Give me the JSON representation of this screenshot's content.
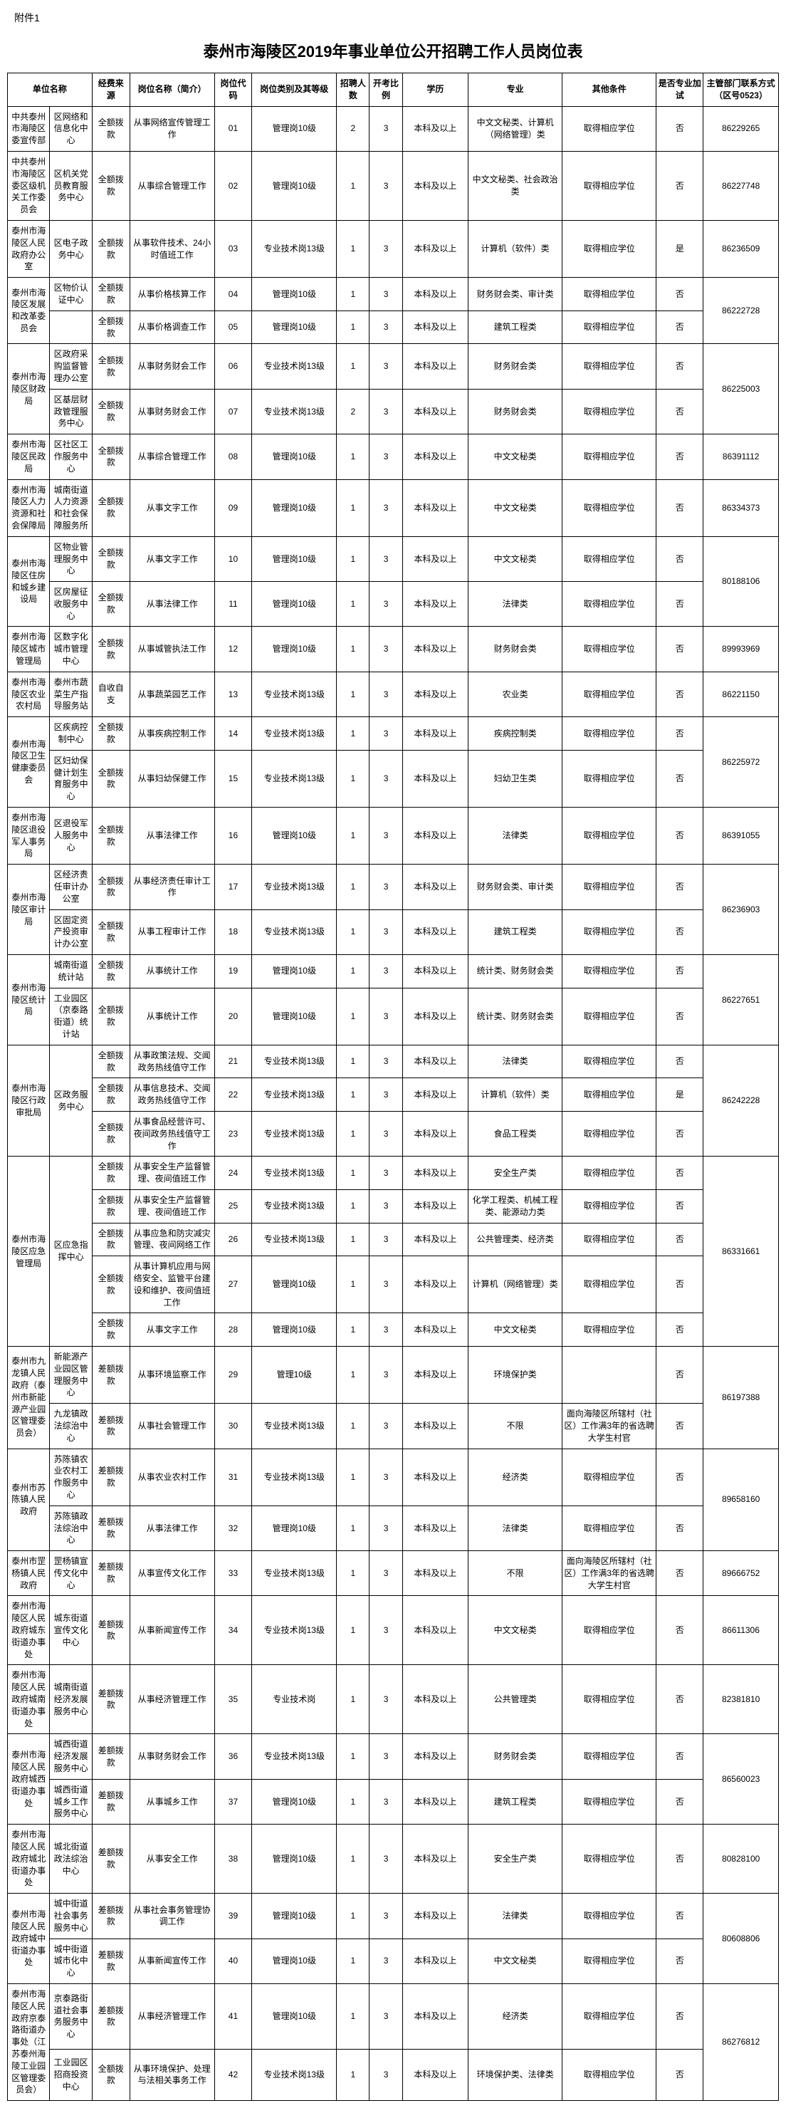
{
  "attachment_label": "附件1",
  "page_title": "泰州市海陵区2019年事业单位公开招聘工作人员岗位表",
  "headers": {
    "col1": "单位名称",
    "col2": "经费来源",
    "col3": "岗位名称（简介）",
    "col4": "岗位代码",
    "col5": "岗位类别及其等级",
    "col6": "招聘人数",
    "col7": "开考比例",
    "col8": "学历",
    "col9": "专业",
    "col10": "其他条件",
    "col11": "是否专业加试",
    "col12": "主管部门联系方式（区号0523）"
  },
  "rows": [
    {
      "dept": "中共泰州市海陵区委宣传部",
      "unit": "区网络和信息化中心",
      "funding": "全额拨款",
      "jobname": "从事网络宣传管理工作",
      "code": "01",
      "level": "管理岗10级",
      "recruit": "2",
      "ratio": "3",
      "edu": "本科及以上",
      "major": "中文文秘类、计算机（网络管理）类",
      "other": "取得相应学位",
      "exam": "否",
      "contact": "86229265"
    },
    {
      "dept": "中共泰州市海陵区委区级机关工作委员会",
      "unit": "区机关党员教育服务中心",
      "funding": "全额拨款",
      "jobname": "从事综合管理工作",
      "code": "02",
      "level": "管理岗10级",
      "recruit": "1",
      "ratio": "3",
      "edu": "本科及以上",
      "major": "中文文秘类、社会政治类",
      "other": "取得相应学位",
      "exam": "否",
      "contact": "86227748"
    },
    {
      "dept": "泰州市海陵区人民政府办公室",
      "unit": "区电子政务中心",
      "funding": "全额拨款",
      "jobname": "从事软件技术、24小时值班工作",
      "code": "03",
      "level": "专业技术岗13级",
      "recruit": "1",
      "ratio": "3",
      "edu": "本科及以上",
      "major": "计算机（软件）类",
      "other": "取得相应学位",
      "exam": "是",
      "contact": "86236509"
    },
    {
      "dept": "泰州市海陵区发展和改革委员会",
      "unit": "区物价认证中心",
      "funding": "全额拨款",
      "jobname": "从事价格核算工作",
      "code": "04",
      "level": "管理岗10级",
      "recruit": "1",
      "ratio": "3",
      "edu": "本科及以上",
      "major": "财务财会类、审计类",
      "other": "取得相应学位",
      "exam": "否",
      "contact": "86222728",
      "dept_rowspan": 2
    },
    {
      "unit": "",
      "funding": "全额拨款",
      "jobname": "从事价格调查工作",
      "code": "05",
      "level": "管理岗10级",
      "recruit": "1",
      "ratio": "3",
      "edu": "本科及以上",
      "major": "建筑工程类",
      "other": "取得相应学位",
      "exam": "否"
    },
    {
      "dept": "泰州市海陵区财政局",
      "unit": "区政府采购监督管理办公室",
      "funding": "全额拨款",
      "jobname": "从事财务财会工作",
      "code": "06",
      "level": "专业技术岗13级",
      "recruit": "1",
      "ratio": "3",
      "edu": "本科及以上",
      "major": "财务财会类",
      "other": "取得相应学位",
      "exam": "否",
      "contact": "86225003",
      "dept_rowspan": 2
    },
    {
      "unit": "区基层财政管理服务中心",
      "funding": "全额拨款",
      "jobname": "从事财务财会工作",
      "code": "07",
      "level": "专业技术岗13级",
      "recruit": "2",
      "ratio": "3",
      "edu": "本科及以上",
      "major": "财务财会类",
      "other": "取得相应学位",
      "exam": "否"
    },
    {
      "dept": "泰州市海陵区民政局",
      "unit": "区社区工作服务中心",
      "funding": "全额拨款",
      "jobname": "从事综合管理工作",
      "code": "08",
      "level": "管理岗10级",
      "recruit": "1",
      "ratio": "3",
      "edu": "本科及以上",
      "major": "中文文秘类",
      "other": "取得相应学位",
      "exam": "否",
      "contact": "86391112"
    },
    {
      "dept": "泰州市海陵区人力资源和社会保障局",
      "unit": "城南街道人力资源和社会保障服务所",
      "funding": "全额拨款",
      "jobname": "从事文字工作",
      "code": "09",
      "level": "管理岗10级",
      "recruit": "1",
      "ratio": "3",
      "edu": "本科及以上",
      "major": "中文文秘类",
      "other": "取得相应学位",
      "exam": "否",
      "contact": "86334373"
    },
    {
      "dept": "泰州市海陵区住房和城乡建设局",
      "unit": "区物业管理服务中心",
      "funding": "全额拨款",
      "jobname": "从事文字工作",
      "code": "10",
      "level": "管理岗10级",
      "recruit": "1",
      "ratio": "3",
      "edu": "本科及以上",
      "major": "中文文秘类",
      "other": "取得相应学位",
      "exam": "否",
      "contact": "80188106",
      "dept_rowspan": 2
    },
    {
      "unit": "区房屋征收服务中心",
      "funding": "全额拨款",
      "jobname": "从事法律工作",
      "code": "11",
      "level": "管理岗10级",
      "recruit": "1",
      "ratio": "3",
      "edu": "本科及以上",
      "major": "法律类",
      "other": "取得相应学位",
      "exam": "否"
    },
    {
      "dept": "泰州市海陵区城市管理局",
      "unit": "区数字化城市管理中心",
      "funding": "全额拨款",
      "jobname": "从事城管执法工作",
      "code": "12",
      "level": "管理岗10级",
      "recruit": "1",
      "ratio": "3",
      "edu": "本科及以上",
      "major": "财务财会类",
      "other": "取得相应学位",
      "exam": "否",
      "contact": "89993969"
    },
    {
      "dept": "泰州市海陵区农业农村局",
      "unit": "泰州市蔬菜生产指导服务站",
      "funding": "自收自支",
      "jobname": "从事蔬菜园艺工作",
      "code": "13",
      "level": "专业技术岗13级",
      "recruit": "1",
      "ratio": "3",
      "edu": "本科及以上",
      "major": "农业类",
      "other": "取得相应学位",
      "exam": "否",
      "contact": "86221150"
    },
    {
      "dept": "泰州市海陵区卫生健康委员会",
      "unit": "区疾病控制中心",
      "funding": "全额拨款",
      "jobname": "从事疾病控制工作",
      "code": "14",
      "level": "专业技术岗13级",
      "recruit": "1",
      "ratio": "3",
      "edu": "本科及以上",
      "major": "疾病控制类",
      "other": "取得相应学位",
      "exam": "否",
      "contact": "86225972",
      "dept_rowspan": 2
    },
    {
      "unit": "区妇幼保健计划生育服务中心",
      "funding": "全额拨款",
      "jobname": "从事妇幼保健工作",
      "code": "15",
      "level": "专业技术岗13级",
      "recruit": "1",
      "ratio": "3",
      "edu": "本科及以上",
      "major": "妇幼卫生类",
      "other": "取得相应学位",
      "exam": "否"
    },
    {
      "dept": "泰州市海陵区退役军人事务局",
      "unit": "区退役军人服务中心",
      "funding": "全额拨款",
      "jobname": "从事法律工作",
      "code": "16",
      "level": "管理岗10级",
      "recruit": "1",
      "ratio": "3",
      "edu": "本科及以上",
      "major": "法律类",
      "other": "取得相应学位",
      "exam": "否",
      "contact": "86391055"
    },
    {
      "dept": "泰州市海陵区审计局",
      "unit": "区经济责任审计办公室",
      "funding": "全额拨款",
      "jobname": "从事经济责任审计工作",
      "code": "17",
      "level": "专业技术岗13级",
      "recruit": "1",
      "ratio": "3",
      "edu": "本科及以上",
      "major": "财务财会类、审计类",
      "other": "取得相应学位",
      "exam": "否",
      "contact": "86236903",
      "dept_rowspan": 2
    },
    {
      "unit": "区固定资产投资审计办公室",
      "funding": "全额拨款",
      "jobname": "从事工程审计工作",
      "code": "18",
      "level": "专业技术岗13级",
      "recruit": "1",
      "ratio": "3",
      "edu": "本科及以上",
      "major": "建筑工程类",
      "other": "取得相应学位",
      "exam": "否"
    },
    {
      "dept": "泰州市海陵区统计局",
      "unit": "城南街道统计站",
      "funding": "全额拨款",
      "jobname": "从事统计工作",
      "code": "19",
      "level": "管理岗10级",
      "recruit": "1",
      "ratio": "3",
      "edu": "本科及以上",
      "major": "统计类、财务财会类",
      "other": "取得相应学位",
      "exam": "否",
      "contact": "86227651",
      "dept_rowspan": 2
    },
    {
      "unit": "工业园区（京泰路街道）统计站",
      "funding": "全额拨款",
      "jobname": "从事统计工作",
      "code": "20",
      "level": "管理岗10级",
      "recruit": "1",
      "ratio": "3",
      "edu": "本科及以上",
      "major": "统计类、财务财会类",
      "other": "取得相应学位",
      "exam": "否"
    },
    {
      "dept": "泰州市海陵区行政审批局",
      "unit": "区政务服务中心",
      "funding": "全额拨款",
      "jobname": "从事政策法规、交闻政务热线值守工作",
      "code": "21",
      "level": "专业技术岗13级",
      "recruit": "1",
      "ratio": "3",
      "edu": "本科及以上",
      "major": "法律类",
      "other": "取得相应学位",
      "exam": "否",
      "contact": "86242228",
      "dept_rowspan": 3,
      "unit_rowspan": 3
    },
    {
      "funding": "全额拨款",
      "jobname": "从事信息技术、交闻政务热线值守工作",
      "code": "22",
      "level": "专业技术岗13级",
      "recruit": "1",
      "ratio": "3",
      "edu": "本科及以上",
      "major": "计算机（软件）类",
      "other": "取得相应学位",
      "exam": "是"
    },
    {
      "funding": "全额拨款",
      "jobname": "从事食品经营许可、夜间政务热线值守工作",
      "code": "23",
      "level": "专业技术岗13级",
      "recruit": "1",
      "ratio": "3",
      "edu": "本科及以上",
      "major": "食品工程类",
      "other": "取得相应学位",
      "exam": "否"
    },
    {
      "dept": "泰州市海陵区应急管理局",
      "unit": "区应急指挥中心",
      "funding": "全额拨款",
      "jobname": "从事安全生产监督管理、夜间值班工作",
      "code": "24",
      "level": "专业技术岗13级",
      "recruit": "1",
      "ratio": "3",
      "edu": "本科及以上",
      "major": "安全生产类",
      "other": "取得相应学位",
      "exam": "否",
      "contact": "86331661",
      "dept_rowspan": 5,
      "unit_rowspan": 5
    },
    {
      "funding": "全额拨款",
      "jobname": "从事安全生产监督管理、夜间值班工作",
      "code": "25",
      "level": "专业技术岗13级",
      "recruit": "1",
      "ratio": "3",
      "edu": "本科及以上",
      "major": "化学工程类、机械工程类、能源动力类",
      "other": "取得相应学位",
      "exam": "否"
    },
    {
      "funding": "全额拨款",
      "jobname": "从事应急和防灾减灾管理、夜间网络工作",
      "code": "26",
      "level": "专业技术岗13级",
      "recruit": "1",
      "ratio": "3",
      "edu": "本科及以上",
      "major": "公共管理类、经济类",
      "other": "取得相应学位",
      "exam": "否"
    },
    {
      "funding": "全额拨款",
      "jobname": "从事计算机应用与网络安全、监管平台建设和维护、夜间值班工作",
      "code": "27",
      "level": "管理岗10级",
      "recruit": "1",
      "ratio": "3",
      "edu": "本科及以上",
      "major": "计算机（网络管理）类",
      "other": "取得相应学位",
      "exam": "否"
    },
    {
      "funding": "全额拨款",
      "jobname": "从事文字工作",
      "code": "28",
      "level": "管理岗10级",
      "recruit": "1",
      "ratio": "3",
      "edu": "本科及以上",
      "major": "中文文秘类",
      "other": "取得相应学位",
      "exam": "否"
    },
    {
      "dept": "泰州市九龙镇人民政府（泰州市新能源产业园区管理委员会）",
      "unit": "新能源产业园区管理服务中心",
      "funding": "差额拨款",
      "jobname": "从事环境监察工作",
      "code": "29",
      "level": "管理10级",
      "recruit": "1",
      "ratio": "3",
      "edu": "本科及以上",
      "major": "环境保护类",
      "other": "",
      "exam": "否",
      "contact": "86197388",
      "dept_rowspan": 2
    },
    {
      "unit": "九龙镇政法综治中心",
      "funding": "差额拨款",
      "jobname": "从事社会管理工作",
      "code": "30",
      "level": "专业技术岗13级",
      "recruit": "1",
      "ratio": "3",
      "edu": "本科及以上",
      "major": "不限",
      "other": "面向海陵区所辖村（社区）工作满3年的省选聘大学生村官",
      "exam": "否"
    },
    {
      "dept": "泰州市苏陈镇人民政府",
      "unit": "苏陈镇农业农村工作服务中心",
      "funding": "差额拨款",
      "jobname": "从事农业农村工作",
      "code": "31",
      "level": "专业技术岗13级",
      "recruit": "1",
      "ratio": "3",
      "edu": "本科及以上",
      "major": "经济类",
      "other": "取得相应学位",
      "exam": "否",
      "contact": "89658160",
      "dept_rowspan": 2
    },
    {
      "unit": "苏陈镇政法综治中心",
      "funding": "差额拨款",
      "jobname": "从事法律工作",
      "code": "32",
      "level": "管理岗10级",
      "recruit": "1",
      "ratio": "3",
      "edu": "本科及以上",
      "major": "法律类",
      "other": "取得相应学位",
      "exam": "否"
    },
    {
      "dept": "泰州市罡杨镇人民政府",
      "unit": "罡杨镇宣传文化中心",
      "funding": "差额拨款",
      "jobname": "从事宣传文化工作",
      "code": "33",
      "level": "专业技术岗13级",
      "recruit": "1",
      "ratio": "3",
      "edu": "本科及以上",
      "major": "不限",
      "other": "面向海陵区所辖村（社区）工作满3年的省选聘大学生村官",
      "exam": "否",
      "contact": "89666752"
    },
    {
      "dept": "泰州市海陵区人民政府城东街道办事处",
      "unit": "城东街道宣传文化中心",
      "funding": "差额拨款",
      "jobname": "从事新闻宣传工作",
      "code": "34",
      "level": "专业技术岗13级",
      "recruit": "1",
      "ratio": "3",
      "edu": "本科及以上",
      "major": "中文文秘类",
      "other": "取得相应学位",
      "exam": "否",
      "contact": "86611306"
    },
    {
      "dept": "泰州市海陵区人民政府城南街道办事处",
      "unit": "城南街道经济发展服务中心",
      "funding": "差额拨款",
      "jobname": "从事经济管理工作",
      "code": "35",
      "level": "专业技术岗",
      "recruit": "1",
      "ratio": "3",
      "edu": "本科及以上",
      "major": "公共管理类",
      "other": "取得相应学位",
      "exam": "否",
      "contact": "82381810"
    },
    {
      "dept": "泰州市海陵区人民政府城西街道办事处",
      "unit": "城西街道经济发展服务中心",
      "funding": "差额拨款",
      "jobname": "从事财务财会工作",
      "code": "36",
      "level": "专业技术岗13级",
      "recruit": "1",
      "ratio": "3",
      "edu": "本科及以上",
      "major": "财务财会类",
      "other": "取得相应学位",
      "exam": "否",
      "contact": "86560023",
      "dept_rowspan": 2
    },
    {
      "unit": "城西街道城乡工作服务中心",
      "funding": "差额拨款",
      "jobname": "从事城乡工作",
      "code": "37",
      "level": "管理岗10级",
      "recruit": "1",
      "ratio": "3",
      "edu": "本科及以上",
      "major": "建筑工程类",
      "other": "取得相应学位",
      "exam": "否"
    },
    {
      "dept": "泰州市海陵区人民政府城北街道办事处",
      "unit": "城北街道政法综治中心",
      "funding": "差额拨款",
      "jobname": "从事安全工作",
      "code": "38",
      "level": "管理岗10级",
      "recruit": "1",
      "ratio": "3",
      "edu": "本科及以上",
      "major": "安全生产类",
      "other": "取得相应学位",
      "exam": "否",
      "contact": "80828100"
    },
    {
      "dept": "泰州市海陵区人民政府城中街道办事处",
      "unit": "城中街道社会事务服务中心",
      "funding": "差额拨款",
      "jobname": "从事社会事务管理协调工作",
      "code": "39",
      "level": "管理岗10级",
      "recruit": "1",
      "ratio": "3",
      "edu": "本科及以上",
      "major": "法律类",
      "other": "取得相应学位",
      "exam": "否",
      "contact": "80608806",
      "dept_rowspan": 2
    },
    {
      "unit": "城中街道城市化中心",
      "funding": "差额拨款",
      "jobname": "从事新闻宣传工作",
      "code": "40",
      "level": "管理岗10级",
      "recruit": "1",
      "ratio": "3",
      "edu": "本科及以上",
      "major": "中文文秘类",
      "other": "取得相应学位",
      "exam": "否"
    },
    {
      "dept": "泰州市海陵区人民政府京泰路街道办事处（江苏泰州海陵工业园区管理委员会）",
      "unit": "京泰路街道社会事务服务中心",
      "funding": "差额拨款",
      "jobname": "从事经济管理工作",
      "code": "41",
      "level": "管理岗10级",
      "recruit": "1",
      "ratio": "3",
      "edu": "本科及以上",
      "major": "经济类",
      "other": "取得相应学位",
      "exam": "否",
      "contact": "86276812",
      "dept_rowspan": 2
    },
    {
      "unit": "工业园区招商投资中心",
      "funding": "全额拨款",
      "jobname": "从事环境保护、处理与法相关事务工作",
      "code": "42",
      "level": "专业技术岗13级",
      "recruit": "1",
      "ratio": "3",
      "edu": "本科及以上",
      "major": "环境保护类、法律类",
      "other": "取得相应学位",
      "exam": "否"
    }
  ]
}
